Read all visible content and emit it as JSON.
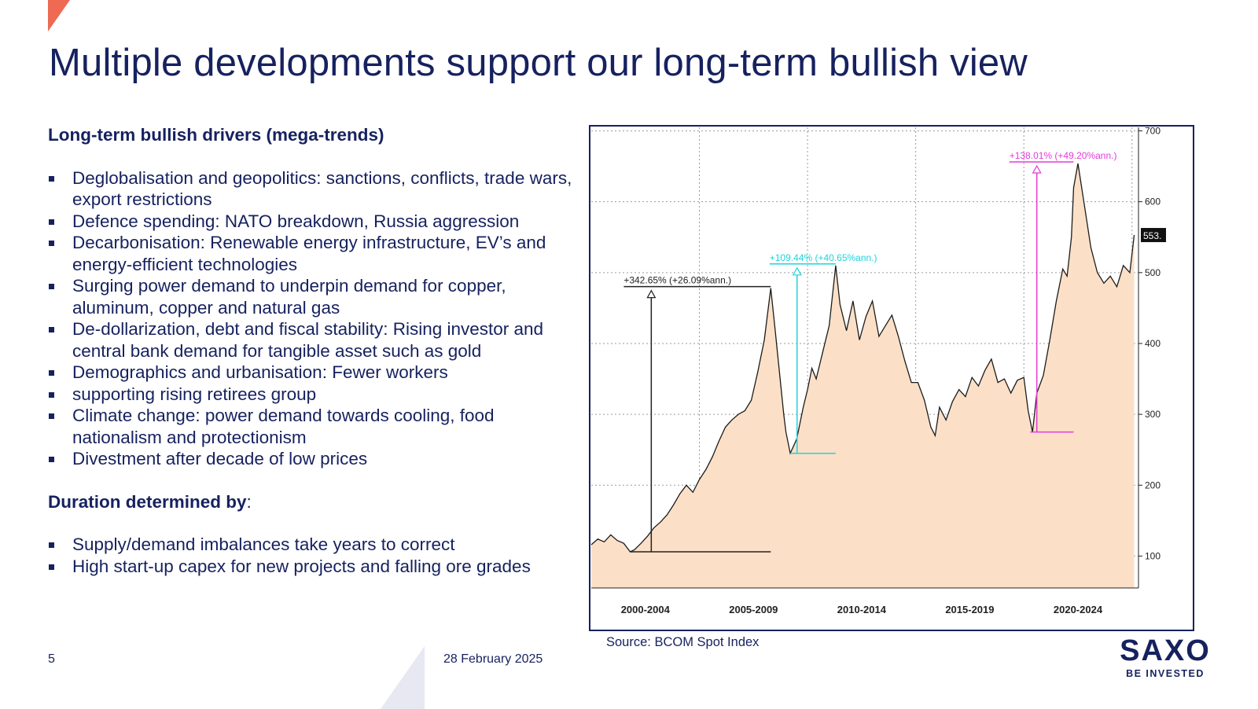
{
  "slide": {
    "title": "Multiple developments support our long-term bullish view",
    "page_number": "5",
    "date": "28 February 2025",
    "source": "Source: BCOM Spot Index",
    "logo": {
      "main": "SAXO",
      "tagline": "BE INVESTED"
    }
  },
  "drivers": {
    "heading": "Long-term bullish drivers (mega-trends)",
    "items": [
      "Deglobalisation and geopolitics: sanctions, conflicts, trade wars, export restrictions",
      "Defence spending: NATO breakdown, Russia aggression",
      "Decarbonisation: Renewable energy infrastructure, EV’s and energy-efficient technologies",
      "Surging power demand to underpin demand for copper, aluminum, copper and natural gas",
      "De-dollarization, debt and fiscal stability: Rising investor and central bank demand for tangible asset such as gold",
      "Demographics and urbanisation: Fewer workers",
      "supporting rising retirees group",
      "Climate change: power demand towards cooling, food nationalism and protectionism",
      "Divestment after decade of low prices"
    ]
  },
  "duration": {
    "heading_bold": "Duration determined by",
    "heading_rest": ":",
    "items": [
      "Supply/demand imbalances take years to correct",
      "High start-up capex for new projects and falling ore grades"
    ]
  },
  "colors": {
    "brand_navy": "#16215f",
    "accent_red": "#ee6a52",
    "area_fill": "#fbe0c7",
    "annotation_black": "#222222",
    "annotation_cyan": "#1fd3dd",
    "annotation_magenta": "#e33bd8"
  },
  "chart_data": {
    "type": "area",
    "title": "",
    "xlabel": "",
    "ylabel": "",
    "x_tick_labels": [
      "2000-2004",
      "2005-2009",
      "2010-2014",
      "2015-2019",
      "2020-2024"
    ],
    "y_ticks": [
      100,
      200,
      300,
      400,
      500,
      600,
      700
    ],
    "ylim": [
      55,
      705
    ],
    "xlim": [
      2000.0,
      2025.3
    ],
    "grid": true,
    "y_axis_position": "right",
    "last_value_label": "553.",
    "series": [
      {
        "x": [
          2000.0,
          2000.3,
          2000.6,
          2000.9,
          2001.2,
          2001.5,
          2001.8,
          2002.0,
          2002.3,
          2002.6,
          2002.9,
          2003.2,
          2003.5,
          2003.8,
          2004.1,
          2004.4,
          2004.7,
          2005.0,
          2005.3,
          2005.6,
          2005.9,
          2006.2,
          2006.5,
          2006.8,
          2007.1,
          2007.4,
          2007.7,
          2008.0,
          2008.3,
          2008.5,
          2008.7,
          2008.9,
          2009.0,
          2009.2,
          2009.5,
          2009.8,
          2010.0,
          2010.2,
          2010.4,
          2010.7,
          2011.0,
          2011.3,
          2011.5,
          2011.8,
          2012.1,
          2012.4,
          2012.7,
          2013.0,
          2013.3,
          2013.6,
          2013.9,
          2014.2,
          2014.5,
          2014.8,
          2015.1,
          2015.4,
          2015.7,
          2015.9,
          2016.1,
          2016.4,
          2016.7,
          2017.0,
          2017.3,
          2017.6,
          2017.9,
          2018.2,
          2018.5,
          2018.8,
          2019.1,
          2019.4,
          2019.7,
          2020.0,
          2020.2,
          2020.4,
          2020.6,
          2020.9,
          2021.2,
          2021.5,
          2021.8,
          2022.0,
          2022.2,
          2022.3,
          2022.5,
          2022.8,
          2023.1,
          2023.4,
          2023.7,
          2024.0,
          2024.3,
          2024.6,
          2024.9,
          2025.1
        ],
        "y": [
          116,
          124,
          120,
          130,
          122,
          118,
          106,
          109,
          118,
          128,
          140,
          148,
          158,
          172,
          188,
          200,
          190,
          208,
          222,
          240,
          262,
          282,
          292,
          300,
          305,
          320,
          360,
          405,
          478,
          420,
          360,
          300,
          275,
          245,
          265,
          310,
          335,
          365,
          350,
          388,
          425,
          510,
          455,
          418,
          460,
          405,
          438,
          460,
          410,
          425,
          440,
          410,
          375,
          345,
          345,
          320,
          282,
          270,
          310,
          292,
          318,
          335,
          325,
          352,
          340,
          362,
          378,
          345,
          350,
          330,
          348,
          352,
          305,
          275,
          330,
          355,
          405,
          460,
          505,
          495,
          550,
          620,
          654,
          595,
          535,
          500,
          485,
          495,
          480,
          510,
          500,
          553
        ]
      }
    ],
    "annotations": [
      {
        "label": "+342.65% (+26.09%ann.)",
        "from": {
          "x": 2001.8,
          "y": 106
        },
        "to": {
          "x": 2008.3,
          "y": 478
        },
        "color": "black"
      },
      {
        "label": "+109.44% (+40.65%ann.)",
        "from": {
          "x": 2009.2,
          "y": 245
        },
        "to": {
          "x": 2011.3,
          "y": 510
        },
        "color": "cyan"
      },
      {
        "label": "+138.01% (+49.20%ann.)",
        "from": {
          "x": 2020.3,
          "y": 275
        },
        "to": {
          "x": 2022.3,
          "y": 654
        },
        "color": "magenta"
      }
    ]
  }
}
